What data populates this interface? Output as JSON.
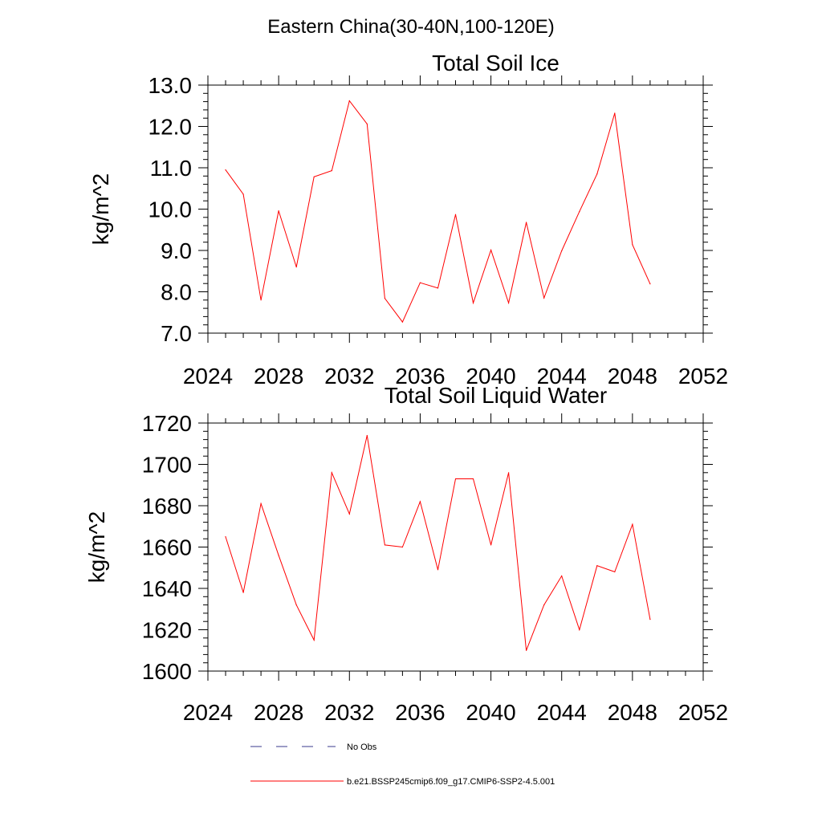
{
  "figure": {
    "main_title": "Eastern China(30-40N,100-120E)"
  },
  "chart_data": [
    {
      "type": "line",
      "title": "Total Soil Ice",
      "xlabel": "",
      "ylabel": "kg/m^2",
      "xlim": [
        2024,
        2052
      ],
      "ylim": [
        7.0,
        13.0
      ],
      "x_ticks": [
        2024,
        2028,
        2032,
        2036,
        2040,
        2044,
        2048,
        2052
      ],
      "y_ticks": [
        7.0,
        8.0,
        9.0,
        10.0,
        11.0,
        12.0,
        13.0
      ],
      "y_tick_labels": [
        "7.0",
        "8.0",
        "9.0",
        "10.0",
        "11.0",
        "12.0",
        "13.0"
      ],
      "grid": false,
      "series": [
        {
          "color": "#ff0000",
          "x": [
            2025,
            2026,
            2027,
            2028,
            2029,
            2030,
            2031,
            2032,
            2033,
            2034,
            2035,
            2036,
            2037,
            2038,
            2039,
            2040,
            2041,
            2042,
            2043,
            2044,
            2045,
            2046,
            2047,
            2048,
            2049
          ],
          "values": [
            10.95,
            10.36,
            7.8,
            9.96,
            8.6,
            10.78,
            10.93,
            12.62,
            12.06,
            7.84,
            7.27,
            8.22,
            8.09,
            9.87,
            7.73,
            9.01,
            7.73,
            9.68,
            7.85,
            8.99,
            9.94,
            10.85,
            12.32,
            9.14,
            8.19
          ]
        }
      ]
    },
    {
      "type": "line",
      "title": "Total Soil Liquid Water",
      "xlabel": "",
      "ylabel": "kg/m^2",
      "xlim": [
        2024,
        2052
      ],
      "ylim": [
        1600,
        1720
      ],
      "x_ticks": [
        2024,
        2028,
        2032,
        2036,
        2040,
        2044,
        2048,
        2052
      ],
      "y_ticks": [
        1600,
        1620,
        1640,
        1660,
        1680,
        1700,
        1720
      ],
      "y_tick_labels": [
        "1600",
        "1620",
        "1640",
        "1660",
        "1680",
        "1700",
        "1720"
      ],
      "grid": false,
      "series": [
        {
          "color": "#ff0000",
          "x": [
            2025,
            2026,
            2027,
            2028,
            2029,
            2030,
            2031,
            2032,
            2033,
            2034,
            2035,
            2036,
            2037,
            2038,
            2039,
            2040,
            2041,
            2042,
            2043,
            2044,
            2045,
            2046,
            2047,
            2048,
            2049
          ],
          "values": [
            1665,
            1638,
            1681,
            1656,
            1632,
            1615,
            1696,
            1676,
            1714,
            1661,
            1660,
            1682,
            1649,
            1693,
            1693,
            1661,
            1696,
            1610,
            1632,
            1646,
            1620,
            1651,
            1648,
            1671,
            1625
          ]
        }
      ]
    }
  ],
  "legend": {
    "placement": "bottom-center",
    "items": [
      {
        "label": "No Obs",
        "color": "#3a3a8c",
        "dash": "dashed"
      },
      {
        "label": "b.e21.BSSP245cmip6.f09_g17.CMIP6-SSP2-4.5.001",
        "color": "#ff0000",
        "dash": "solid"
      }
    ]
  }
}
